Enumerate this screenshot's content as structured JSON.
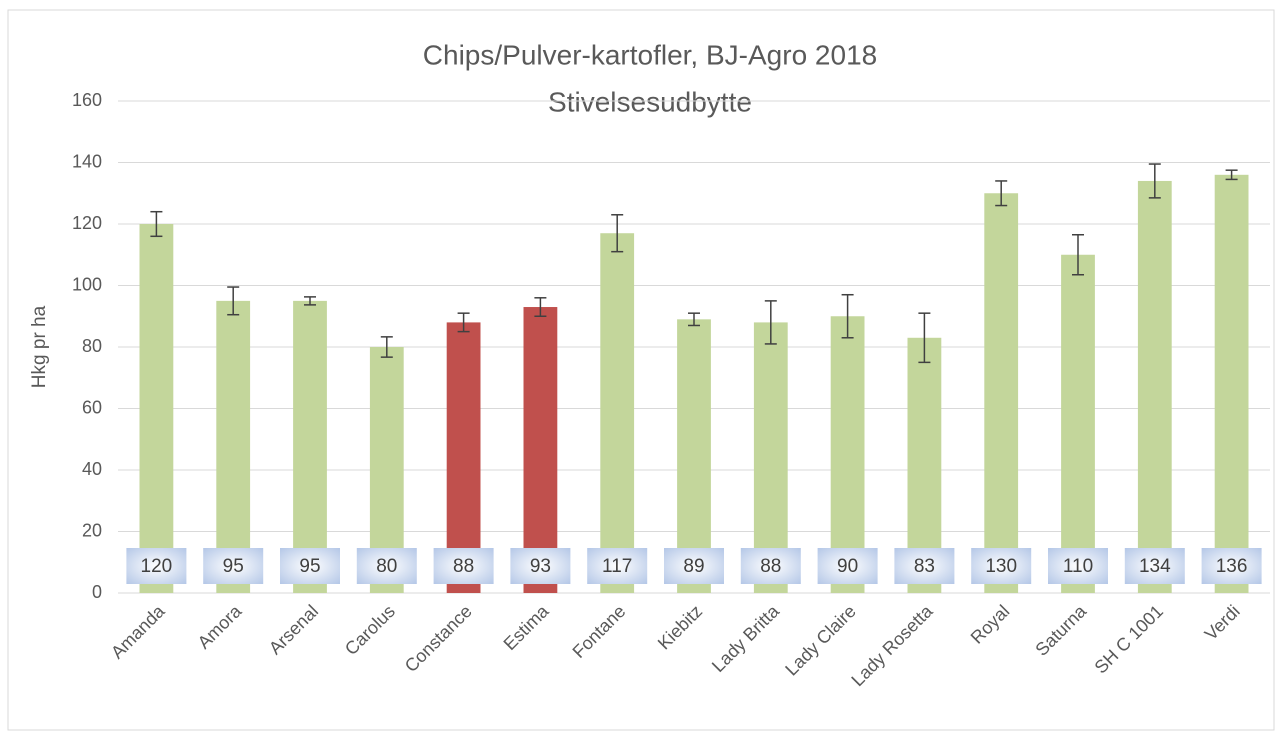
{
  "chart_data": {
    "type": "bar",
    "title": "Chips/Pulver-kartofler, BJ-Agro 2018",
    "subtitle": "Stivelsesudbytte",
    "y_label": "Hkg pr ha",
    "categories": [
      "Amanda",
      "Amora",
      "Arsenal",
      "Carolus",
      "Constance",
      "Estima",
      "Fontane",
      "Kiebitz",
      "Lady Britta",
      "Lady Claire",
      "Lady Rosetta",
      "Royal",
      "Saturna",
      "SH C 1001",
      "Verdi"
    ],
    "values": [
      120,
      95,
      95,
      80,
      88,
      93,
      117,
      89,
      88,
      90,
      83,
      130,
      110,
      134,
      136
    ],
    "errors": [
      4,
      4.5,
      1.3,
      3.3,
      3,
      3,
      6,
      2,
      7,
      7,
      8,
      4,
      6.5,
      5.5,
      1.5
    ],
    "colors": [
      "#c3d69b",
      "#c3d69b",
      "#c3d69b",
      "#c3d69b",
      "#c0504d",
      "#c0504d",
      "#c3d69b",
      "#c3d69b",
      "#c3d69b",
      "#c3d69b",
      "#c3d69b",
      "#c3d69b",
      "#c3d69b",
      "#c3d69b",
      "#c3d69b"
    ],
    "ylim": [
      0,
      160
    ],
    "yticks": [
      0,
      20,
      40,
      60,
      80,
      100,
      120,
      140,
      160
    ],
    "grid": true
  }
}
